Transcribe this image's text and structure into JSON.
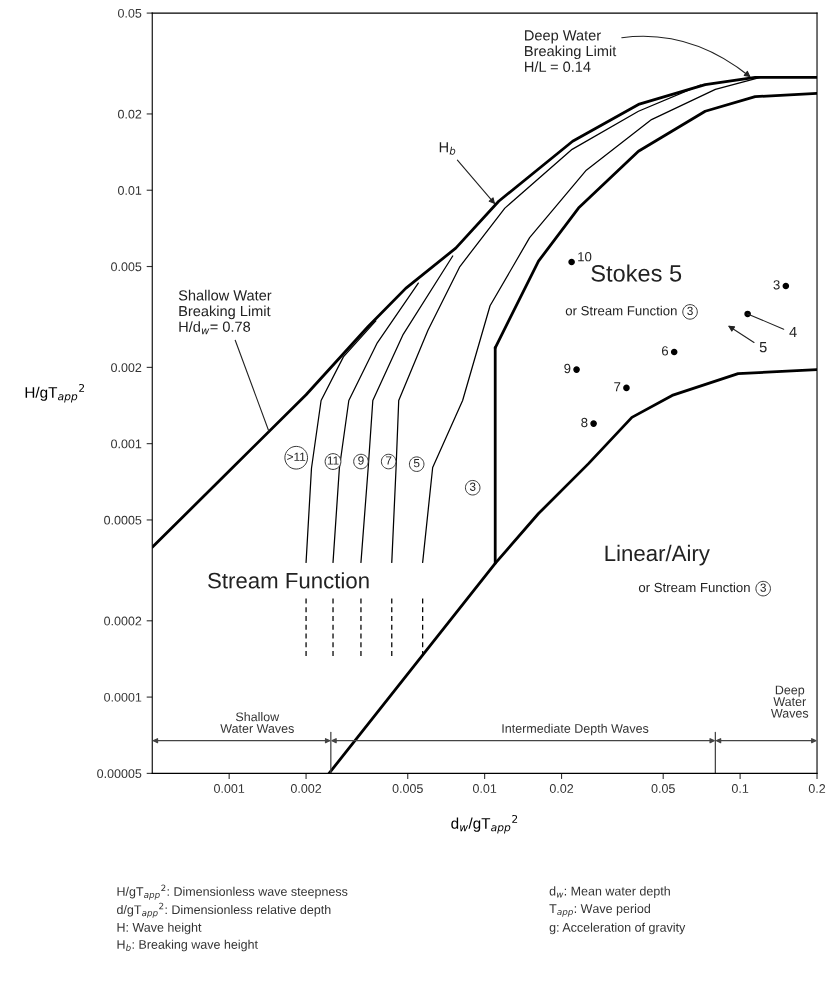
{
  "chart_data": {
    "type": "line",
    "log": "xy",
    "grid": false,
    "xlabel": "d$_{w}$/gT$_{app}$$^{2}$",
    "ylabel": "H/gT$_{app}$$^{2}$",
    "xlim": [
      0.0005,
      0.2
    ],
    "ylim": [
      5e-05,
      0.05
    ],
    "xticks": [
      0.001,
      0.002,
      0.005,
      0.01,
      0.02,
      0.05,
      0.1,
      0.2
    ],
    "yticks": [
      {
        "value": 5e-05,
        "label": "0.00005"
      },
      0.0001,
      0.0002,
      0.0005,
      0.001,
      0.002,
      0.005,
      0.01,
      0.02,
      0.05
    ],
    "series": [
      {
        "color": "#000000",
        "line_style": "solid",
        "x": [
          0.0005,
          0.001,
          0.002,
          0.0035,
          0.00491,
          0.00771,
          0.01135,
          0.0221,
          0.04,
          0.073,
          0.1145,
          0.2
        ],
        "values": [
          0.00039,
          0.00078,
          0.00156,
          0.0029,
          0.0041,
          0.00591,
          0.00905,
          0.0156,
          0.0218,
          0.0261,
          0.0279,
          0.0279
        ]
      },
      {
        "color": "#000000",
        "line_style": "solid",
        "x": [
          0.011,
          0.01625,
          0.0233,
          0.04,
          0.073,
          0.1145,
          0.2
        ],
        "values": [
          0.00239,
          0.00525,
          0.0085,
          0.01425,
          0.0205,
          0.0234,
          0.0241
        ]
      },
      {
        "color": "#000000",
        "line_style": "solid",
        "x": [
          0.011,
          0.011
        ],
        "values": [
          0.000337,
          0.00239
        ]
      },
      {
        "color": "#000000",
        "line_style": "solid",
        "x": [
          0.00246,
          0.011,
          0.01625,
          0.0255,
          0.0377,
          0.0542,
          0.0982,
          0.2
        ],
        "values": [
          5e-05,
          0.000337,
          0.00053,
          0.000834,
          0.00127,
          0.00155,
          0.00189,
          0.00196
        ]
      },
      {
        "color": "#000000",
        "line_style": "solid",
        "x": [
          0.002,
          0.0021,
          0.00229,
          0.0028,
          0.00375
        ],
        "values": [
          0.00034,
          0.0008,
          0.00148,
          0.0022,
          0.00305
        ]
      },
      {
        "color": "#000000",
        "line_style": "solid",
        "x": [
          0.00255,
          0.0027,
          0.00294,
          0.0038,
          0.0055
        ],
        "values": [
          0.00034,
          0.0008,
          0.00148,
          0.0025,
          0.0043
        ]
      },
      {
        "color": "#000000",
        "line_style": "solid",
        "x": [
          0.00328,
          0.0035,
          0.00365,
          0.0048,
          0.0075
        ],
        "values": [
          0.00034,
          0.0008,
          0.00148,
          0.0027,
          0.0055
        ]
      },
      {
        "color": "#000000",
        "line_style": "solid",
        "x": [
          0.00433,
          0.0045,
          0.00461,
          0.006,
          0.008,
          0.012,
          0.022,
          0.04,
          0.07
        ],
        "values": [
          0.00034,
          0.0008,
          0.00148,
          0.0028,
          0.005,
          0.0085,
          0.0145,
          0.0205,
          0.026
        ]
      },
      {
        "color": "#000000",
        "line_style": "solid",
        "x": [
          0.00572,
          0.00626,
          0.0082,
          0.0105,
          0.015,
          0.025,
          0.045,
          0.08,
          0.12
        ],
        "values": [
          0.00034,
          0.000805,
          0.00148,
          0.0035,
          0.0065,
          0.012,
          0.019,
          0.025,
          0.0279
        ]
      },
      {
        "color": "#000000",
        "line_style": "dashed",
        "x": [
          0.002,
          0.002
        ],
        "values": [
          0.000245,
          0.000143
        ]
      },
      {
        "color": "#000000",
        "line_style": "dashed",
        "x": [
          0.00255,
          0.00255
        ],
        "values": [
          0.000245,
          0.000143
        ]
      },
      {
        "color": "#000000",
        "line_style": "dashed",
        "x": [
          0.00328,
          0.00328
        ],
        "values": [
          0.000245,
          0.000143
        ]
      },
      {
        "color": "#000000",
        "line_style": "dashed",
        "x": [
          0.00433,
          0.00433
        ],
        "values": [
          0.000245,
          0.000143
        ]
      },
      {
        "color": "#000000",
        "line_style": "dashed",
        "x": [
          0.00572,
          0.00572
        ],
        "values": [
          0.000245,
          0.000143
        ]
      },
      {
        "color": "#444444",
        "line_style": "solid",
        "x": [
          0.0025,
          0.0025
        ],
        "values": [
          5e-05,
          7.25e-05
        ]
      },
      {
        "color": "#444444",
        "line_style": "solid",
        "x": [
          0.08,
          0.08
        ],
        "values": [
          5e-05,
          7.25e-05
        ]
      },
      {
        "type": "scatter",
        "marker": "circle",
        "color": "#000000",
        "x": [
          0.151,
          0.107,
          0.0552,
          0.0359,
          0.0267,
          0.0229,
          0.0219
        ],
        "values": [
          0.00419,
          0.00325,
          0.0023,
          0.00166,
          0.0012,
          0.00196,
          0.00521
        ]
      }
    ],
    "annotations": [
      {
        "text": "Deep Water\nBreaking Limit\nH/L = 0.14",
        "x": 0.11,
        "y": 0.0279
      },
      {
        "text": "H$_{b}$",
        "x": 0.011,
        "y": 0.0088
      },
      {
        "text": "Shallow Water\nBreaking Limit\nH/d$_{w}$= 0.78",
        "x": 0.00143,
        "y": 0.00112
      },
      {
        "text": "4",
        "x": 0.107,
        "y": 0.00325
      },
      {
        "text": "3",
        "x": 0.151,
        "y": 0.00419
      },
      {
        "text": "6",
        "x": 0.0552,
        "y": 0.0023
      },
      {
        "text": "7",
        "x": 0.0359,
        "y": 0.00166
      },
      {
        "text": "8",
        "x": 0.0267,
        "y": 0.0012
      },
      {
        "text": "9",
        "x": 0.0229,
        "y": 0.00196
      },
      {
        "text": "10",
        "x": 0.0219,
        "y": 0.00521
      },
      {
        "text": ">11",
        "x": 0.00183,
        "y": 0.00088
      },
      {
        "text": "11",
        "x": 0.00255,
        "y": 0.00085
      },
      {
        "text": "9",
        "x": 0.00328,
        "y": 0.00085
      },
      {
        "text": "7",
        "x": 0.00421,
        "y": 0.00085
      },
      {
        "text": "5",
        "x": 0.00542,
        "y": 0.00083
      },
      {
        "text": "3",
        "x": 0.00898,
        "y": 0.00067
      },
      "Stokes 5",
      "or Stream Function",
      "3",
      "Linear/Airy",
      "or Stream Function",
      "3",
      "Stream Function",
      "5",
      "Shallow\nWater Waves",
      "Intermediate Depth Waves",
      "Deep\nWater\nWaves",
      "H/gT$_{app}$$^{2}$: Dimensionless wave steepness",
      "d/gT$_{app}$$^{2}$: Dimensionless relative depth",
      "H: Wave height",
      "H$_{b}$: Breaking wave height",
      "d$_{w}$: Mean water depth",
      "T$_{app}$: Wave period",
      "g: Acceleration of gravity"
    ]
  }
}
